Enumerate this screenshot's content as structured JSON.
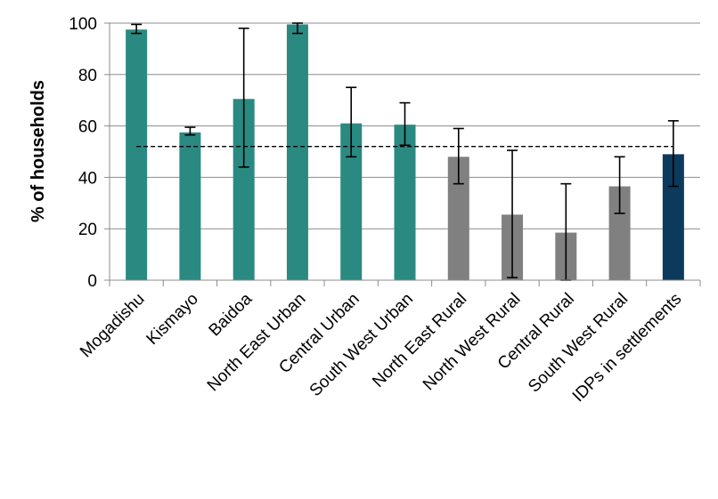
{
  "chart_data": {
    "type": "bar",
    "ylabel": "% of households",
    "ylim": [
      0,
      100
    ],
    "yticks": [
      0,
      20,
      40,
      60,
      80,
      100
    ],
    "grid": true,
    "categories": [
      "Mogadishu",
      "Kismayo",
      "Baidoa",
      "North East Urban",
      "Central Urban",
      "South West Urban",
      "North East Rural",
      "North West Rural",
      "Central Rural",
      "South West Rural",
      "IDPs in settlements"
    ],
    "values": [
      97.5,
      57.5,
      70.5,
      99.5,
      61,
      60.5,
      48,
      25.5,
      18.5,
      36.5,
      49
    ],
    "error_low": [
      96,
      56.5,
      44,
      96,
      48,
      52.5,
      37.5,
      1,
      0,
      26,
      36.5
    ],
    "error_high": [
      99.5,
      59.5,
      98,
      100,
      75,
      69,
      59,
      50.5,
      37.5,
      48,
      62
    ],
    "reference_line": 52,
    "colors": [
      "#2a8a82",
      "#2a8a82",
      "#2a8a82",
      "#2a8a82",
      "#2a8a82",
      "#2a8a82",
      "#808080",
      "#808080",
      "#808080",
      "#808080",
      "#0b3a5c"
    ]
  }
}
